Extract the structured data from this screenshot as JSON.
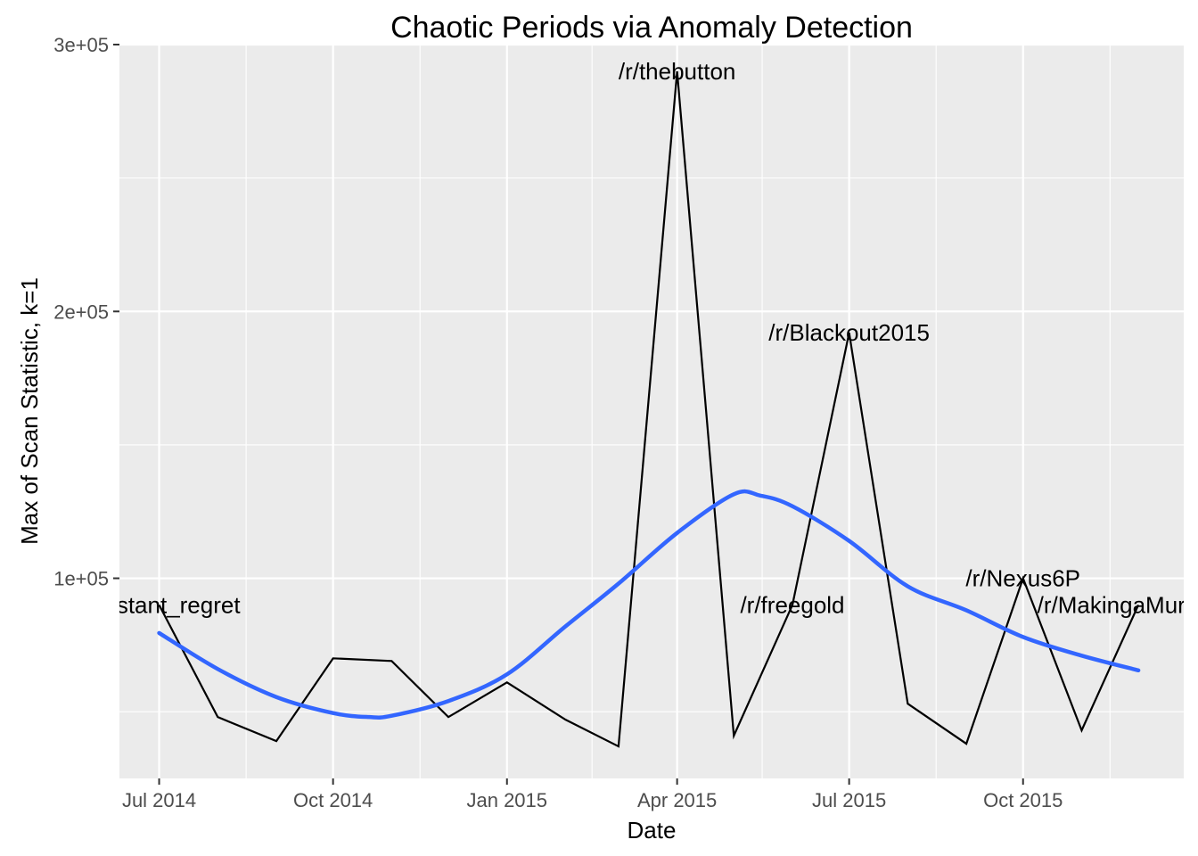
{
  "chart_data": {
    "type": "line",
    "title": "Chaotic Periods via Anomaly Detection",
    "xlabel": "Date",
    "ylabel": "Max of Scan Statistic, k=1",
    "x_type": "date",
    "xlim": [
      "2014-06-10",
      "2015-12-25"
    ],
    "ylim": [
      25000,
      300000
    ],
    "x_ticks": [
      {
        "date": "2014-07-01",
        "label": "Jul 2014"
      },
      {
        "date": "2014-10-01",
        "label": "Oct 2014"
      },
      {
        "date": "2015-01-01",
        "label": "Jan 2015"
      },
      {
        "date": "2015-04-01",
        "label": "Apr 2015"
      },
      {
        "date": "2015-07-01",
        "label": "Jul 2015"
      },
      {
        "date": "2015-10-01",
        "label": "Oct 2015"
      }
    ],
    "x_minor_ticks": [
      "2014-08-16",
      "2014-11-16",
      "2015-02-15",
      "2015-05-16",
      "2015-08-16",
      "2015-11-16"
    ],
    "y_ticks": [
      {
        "value": 100000,
        "label": "1e+05"
      },
      {
        "value": 200000,
        "label": "2e+05"
      },
      {
        "value": 300000,
        "label": "3e+05"
      }
    ],
    "y_minor_ticks": [
      50000,
      150000,
      250000
    ],
    "grid": true,
    "series": [
      {
        "color": "#000000",
        "points": [
          {
            "x": "2014-07-01",
            "y": 90000
          },
          {
            "x": "2014-08-01",
            "y": 48000
          },
          {
            "x": "2014-09-01",
            "y": 39000
          },
          {
            "x": "2014-10-01",
            "y": 70000
          },
          {
            "x": "2014-11-01",
            "y": 69000
          },
          {
            "x": "2014-12-01",
            "y": 48000
          },
          {
            "x": "2015-01-01",
            "y": 61000
          },
          {
            "x": "2015-02-01",
            "y": 47000
          },
          {
            "x": "2015-03-01",
            "y": 37000
          },
          {
            "x": "2015-04-01",
            "y": 290000
          },
          {
            "x": "2015-05-01",
            "y": 41000
          },
          {
            "x": "2015-06-01",
            "y": 90000
          },
          {
            "x": "2015-07-01",
            "y": 192000
          },
          {
            "x": "2015-08-01",
            "y": 53000
          },
          {
            "x": "2015-09-01",
            "y": 38000
          },
          {
            "x": "2015-10-01",
            "y": 100000
          },
          {
            "x": "2015-11-01",
            "y": 43000
          },
          {
            "x": "2015-12-01",
            "y": 90000
          }
        ]
      },
      {
        "color": "#3366ff",
        "smooth": true,
        "points": [
          {
            "x": "2014-07-01",
            "y": 79500
          },
          {
            "x": "2014-08-01",
            "y": 66000
          },
          {
            "x": "2014-09-01",
            "y": 55500
          },
          {
            "x": "2014-10-01",
            "y": 49500
          },
          {
            "x": "2014-10-20",
            "y": 48000
          },
          {
            "x": "2014-11-01",
            "y": 48500
          },
          {
            "x": "2014-12-01",
            "y": 54000
          },
          {
            "x": "2015-01-01",
            "y": 64000
          },
          {
            "x": "2015-02-01",
            "y": 82000
          },
          {
            "x": "2015-03-01",
            "y": 98000
          },
          {
            "x": "2015-04-01",
            "y": 117000
          },
          {
            "x": "2015-05-01",
            "y": 131500
          },
          {
            "x": "2015-05-15",
            "y": 131000
          },
          {
            "x": "2015-06-01",
            "y": 127000
          },
          {
            "x": "2015-07-01",
            "y": 114000
          },
          {
            "x": "2015-08-01",
            "y": 97000
          },
          {
            "x": "2015-09-01",
            "y": 88000
          },
          {
            "x": "2015-10-01",
            "y": 78000
          },
          {
            "x": "2015-11-01",
            "y": 71000
          },
          {
            "x": "2015-12-01",
            "y": 65500
          }
        ]
      }
    ],
    "annotations": [
      {
        "text": "/r/instant_regret",
        "x": "2014-07-01",
        "y": 90000
      },
      {
        "text": "/r/thebutton",
        "x": "2015-04-01",
        "y": 290000
      },
      {
        "text": "/r/freegold",
        "x": "2015-06-01",
        "y": 90000
      },
      {
        "text": "/r/Blackout2015",
        "x": "2015-07-01",
        "y": 192000
      },
      {
        "text": "/r/Nexus6P",
        "x": "2015-10-01",
        "y": 100000
      },
      {
        "text": "/r/MakingaMurderer",
        "x": "2015-12-01",
        "y": 90000
      }
    ]
  }
}
